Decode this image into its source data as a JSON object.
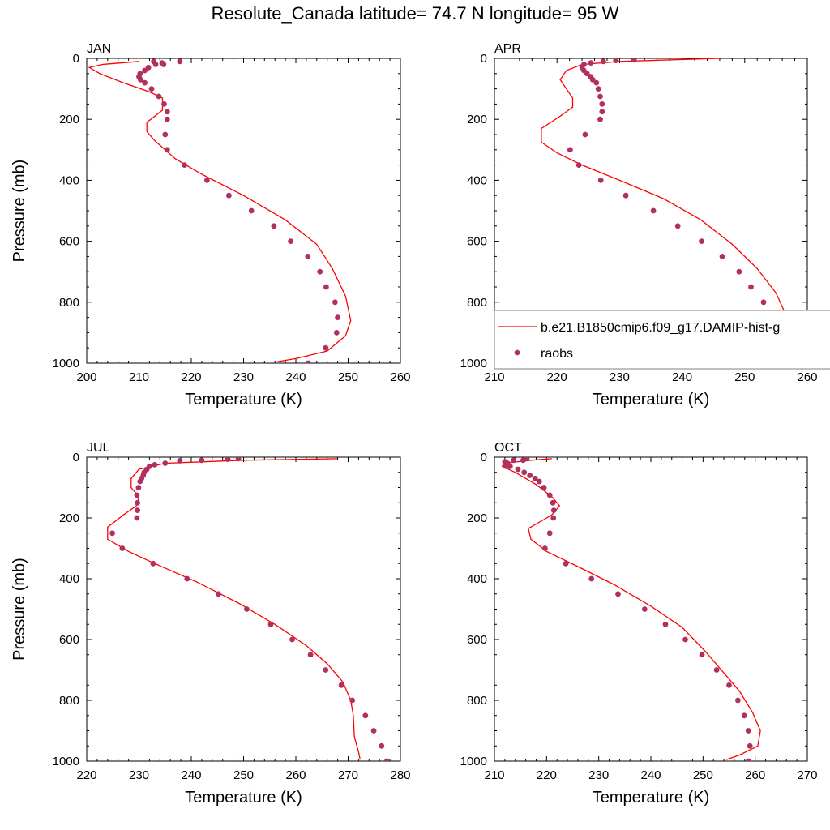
{
  "title": "Resolute_Canada  latitude= 74.7 N longitude= 95 W",
  "colors": {
    "model_line": "#ff0000",
    "obs_marker": "#b03060",
    "axis": "#000000",
    "legend_border": "#808080"
  },
  "chart_data": [
    {
      "type": "line",
      "panel_label": "JAN",
      "xlabel": "Temperature (K)",
      "ylabel": "Pressure (mb)",
      "xlim": [
        200,
        260
      ],
      "ylim": [
        1000,
        0
      ],
      "xticks": [
        200,
        210,
        220,
        230,
        240,
        250,
        260
      ],
      "yticks": [
        0,
        200,
        400,
        600,
        800,
        1000
      ],
      "grid": false,
      "series": [
        {
          "name": "model",
          "kind": "line",
          "points": [
            [
              210,
              10
            ],
            [
              203,
              20
            ],
            [
              200.5,
              30
            ],
            [
              202.5,
              50
            ],
            [
              207,
              80
            ],
            [
              212,
              110
            ],
            [
              214.5,
              130
            ],
            [
              214.5,
              170
            ],
            [
              211.5,
              210
            ],
            [
              211.5,
              240
            ],
            [
              213,
              270
            ],
            [
              217,
              330
            ],
            [
              222,
              380
            ],
            [
              230,
              450
            ],
            [
              238,
              530
            ],
            [
              244,
              610
            ],
            [
              247,
              690
            ],
            [
              249.5,
              780
            ],
            [
              250.5,
              860
            ],
            [
              249.5,
              910
            ],
            [
              246,
              960
            ],
            [
              240,
              985
            ],
            [
              236.5,
              995
            ]
          ]
        },
        {
          "name": "raobs",
          "kind": "scatter",
          "points": [
            [
              217.8,
              10
            ],
            [
              214.7,
              20
            ],
            [
              214.4,
              15
            ],
            [
              212.8,
              10
            ],
            [
              213.2,
              20
            ],
            [
              211.8,
              30
            ],
            [
              211.1,
              40
            ],
            [
              210.2,
              50
            ],
            [
              210,
              60
            ],
            [
              210.3,
              70
            ],
            [
              211.1,
              80
            ],
            [
              212.4,
              100
            ],
            [
              213.8,
              125
            ],
            [
              214.8,
              150
            ],
            [
              215.4,
              175
            ],
            [
              215.4,
              200
            ],
            [
              215,
              250
            ],
            [
              215.4,
              300
            ],
            [
              218.7,
              350
            ],
            [
              223,
              400
            ],
            [
              227.2,
              450
            ],
            [
              231.5,
              500
            ],
            [
              235.8,
              550
            ],
            [
              239,
              600
            ],
            [
              242.3,
              650
            ],
            [
              244.6,
              700
            ],
            [
              245.8,
              750
            ],
            [
              247.5,
              800
            ],
            [
              248,
              850
            ],
            [
              247.8,
              900
            ],
            [
              245.7,
              950
            ],
            [
              242.4,
              1000
            ]
          ]
        }
      ]
    },
    {
      "type": "line",
      "panel_label": "APR",
      "xlabel": "Temperature (K)",
      "ylabel": "Pressure (mb)",
      "xlim": [
        210,
        260
      ],
      "ylim": [
        1000,
        0
      ],
      "xticks": [
        210,
        220,
        230,
        240,
        250,
        260
      ],
      "yticks": [
        0,
        200,
        400,
        600,
        800,
        1000
      ],
      "grid": false,
      "series": [
        {
          "name": "model",
          "kind": "line",
          "points": [
            [
              246,
              0
            ],
            [
              230,
              10
            ],
            [
              224,
              20
            ],
            [
              221.5,
              40
            ],
            [
              220.5,
              70
            ],
            [
              221.5,
              100
            ],
            [
              222.5,
              130
            ],
            [
              222.5,
              160
            ],
            [
              220.5,
              190
            ],
            [
              217.5,
              230
            ],
            [
              217.5,
              275
            ],
            [
              220,
              310
            ],
            [
              224,
              350
            ],
            [
              230,
              400
            ],
            [
              237,
              460
            ],
            [
              243,
              530
            ],
            [
              248,
              610
            ],
            [
              252,
              690
            ],
            [
              255,
              770
            ],
            [
              257,
              860
            ],
            [
              256.5,
              920
            ],
            [
              254,
              970
            ],
            [
              249,
              995
            ]
          ]
        },
        {
          "name": "raobs",
          "kind": "scatter",
          "points": [
            [
              232.3,
              5
            ],
            [
              229.4,
              7
            ],
            [
              227.4,
              10
            ],
            [
              225.4,
              15
            ],
            [
              224.3,
              20
            ],
            [
              224,
              30
            ],
            [
              224.3,
              40
            ],
            [
              224.8,
              50
            ],
            [
              225.4,
              60
            ],
            [
              225.7,
              70
            ],
            [
              226.3,
              80
            ],
            [
              226.6,
              100
            ],
            [
              226.9,
              125
            ],
            [
              227.2,
              150
            ],
            [
              227.2,
              175
            ],
            [
              226.9,
              200
            ],
            [
              224.5,
              250
            ],
            [
              222.1,
              300
            ],
            [
              223.5,
              350
            ],
            [
              227,
              400
            ],
            [
              231,
              450
            ],
            [
              235.4,
              500
            ],
            [
              239.3,
              550
            ],
            [
              243.1,
              600
            ],
            [
              246.4,
              650
            ],
            [
              249.1,
              700
            ],
            [
              251,
              750
            ],
            [
              253,
              800
            ],
            [
              254,
              850
            ],
            [
              254.3,
              900
            ],
            [
              253.3,
              950
            ],
            [
              251,
              1000
            ]
          ]
        }
      ]
    },
    {
      "type": "line",
      "panel_label": "JUL",
      "xlabel": "Temperature (K)",
      "ylabel": "Pressure (mb)",
      "xlim": [
        220,
        280
      ],
      "ylim": [
        1000,
        0
      ],
      "xticks": [
        220,
        230,
        240,
        250,
        260,
        270,
        280
      ],
      "yticks": [
        0,
        200,
        400,
        600,
        800,
        1000
      ],
      "grid": false,
      "series": [
        {
          "name": "model",
          "kind": "line",
          "points": [
            [
              268,
              5
            ],
            [
              250,
              10
            ],
            [
              235,
              20
            ],
            [
              230,
              40
            ],
            [
              228.5,
              70
            ],
            [
              228.5,
              100
            ],
            [
              230,
              130
            ],
            [
              229.5,
              160
            ],
            [
              227,
              190
            ],
            [
              224,
              230
            ],
            [
              224,
              270
            ],
            [
              228,
              310
            ],
            [
              233,
              350
            ],
            [
              241,
              410
            ],
            [
              249,
              480
            ],
            [
              256,
              550
            ],
            [
              262,
              620
            ],
            [
              266,
              680
            ],
            [
              269,
              740
            ],
            [
              270.5,
              800
            ],
            [
              271,
              850
            ],
            [
              271.2,
              920
            ],
            [
              272,
              970
            ],
            [
              272.3,
              995
            ]
          ]
        },
        {
          "name": "raobs",
          "kind": "scatter",
          "points": [
            [
              249,
              5
            ],
            [
              247,
              7
            ],
            [
              242,
              10
            ],
            [
              237.8,
              12
            ],
            [
              235,
              20
            ],
            [
              233,
              25
            ],
            [
              232,
              30
            ],
            [
              231.5,
              40
            ],
            [
              231,
              50
            ],
            [
              230.8,
              60
            ],
            [
              230.5,
              70
            ],
            [
              230.2,
              80
            ],
            [
              229.9,
              100
            ],
            [
              229.6,
              125
            ],
            [
              229.7,
              150
            ],
            [
              229.7,
              175
            ],
            [
              229.6,
              200
            ],
            [
              224.9,
              250
            ],
            [
              226.8,
              300
            ],
            [
              232.7,
              350
            ],
            [
              239.2,
              400
            ],
            [
              245.2,
              450
            ],
            [
              250.6,
              500
            ],
            [
              255.2,
              550
            ],
            [
              259.3,
              600
            ],
            [
              262.8,
              650
            ],
            [
              265.7,
              700
            ],
            [
              268.7,
              750
            ],
            [
              270.8,
              800
            ],
            [
              273.3,
              850
            ],
            [
              274.9,
              900
            ],
            [
              276.4,
              950
            ],
            [
              277.4,
              1000
            ]
          ]
        }
      ]
    },
    {
      "type": "line",
      "panel_label": "OCT",
      "xlabel": "Temperature (K)",
      "ylabel": "Pressure (mb)",
      "xlim": [
        210,
        270
      ],
      "ylim": [
        1000,
        0
      ],
      "xticks": [
        210,
        220,
        230,
        240,
        250,
        260,
        270
      ],
      "yticks": [
        0,
        200,
        400,
        600,
        800,
        1000
      ],
      "grid": false,
      "series": [
        {
          "name": "model",
          "kind": "line",
          "points": [
            [
              221,
              5
            ],
            [
              217,
              10
            ],
            [
              212,
              20
            ],
            [
              211.5,
              30
            ],
            [
              214,
              50
            ],
            [
              218,
              90
            ],
            [
              221,
              130
            ],
            [
              222.5,
              160
            ],
            [
              221,
              190
            ],
            [
              218,
              220
            ],
            [
              216.5,
              235
            ],
            [
              217,
              270
            ],
            [
              220,
              310
            ],
            [
              226,
              360
            ],
            [
              233,
              420
            ],
            [
              240,
              490
            ],
            [
              246,
              560
            ],
            [
              250.5,
              640
            ],
            [
              254,
              710
            ],
            [
              257,
              770
            ],
            [
              259.5,
              840
            ],
            [
              261,
              900
            ],
            [
              260.5,
              950
            ],
            [
              257,
              980
            ],
            [
              254.5,
              995
            ]
          ]
        },
        {
          "name": "raobs",
          "kind": "scatter",
          "points": [
            [
              216.2,
              5
            ],
            [
              215.5,
              10
            ],
            [
              213.7,
              10
            ],
            [
              212.5,
              20
            ],
            [
              212.2,
              30
            ],
            [
              212,
              15
            ],
            [
              213,
              30
            ],
            [
              214.5,
              40
            ],
            [
              215.7,
              50
            ],
            [
              216.8,
              60
            ],
            [
              217.8,
              70
            ],
            [
              218.6,
              80
            ],
            [
              219.5,
              100
            ],
            [
              220.6,
              125
            ],
            [
              221.2,
              150
            ],
            [
              221.4,
              175
            ],
            [
              221.3,
              200
            ],
            [
              220.6,
              250
            ],
            [
              219.7,
              300
            ],
            [
              223.7,
              350
            ],
            [
              228.6,
              400
            ],
            [
              233.7,
              450
            ],
            [
              238.8,
              500
            ],
            [
              242.8,
              550
            ],
            [
              246.6,
              600
            ],
            [
              249.8,
              650
            ],
            [
              252.6,
              700
            ],
            [
              255,
              750
            ],
            [
              256.7,
              800
            ],
            [
              257.9,
              850
            ],
            [
              258.7,
              900
            ],
            [
              259,
              950
            ],
            [
              258.7,
              1000
            ]
          ]
        }
      ]
    }
  ],
  "legend": {
    "placement": "inside APR panel, lower portion, overlapping right edge",
    "entries": [
      {
        "label": "b.e21.B1850cmip6.f09_g17.DAMIP-hist-g",
        "kind": "line"
      },
      {
        "label": "raobs",
        "kind": "scatter"
      }
    ]
  }
}
